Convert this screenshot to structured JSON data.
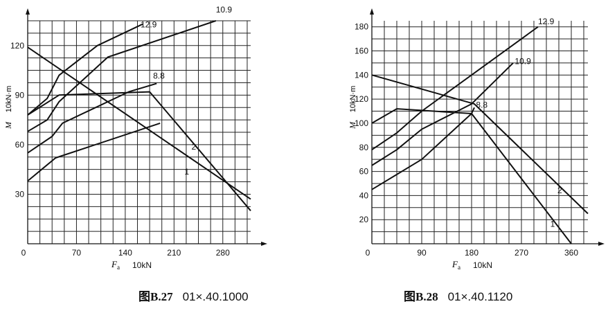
{
  "charts": [
    {
      "caption_label": "图B.27",
      "caption_code": "01×.40.1000",
      "chart_data": {
        "type": "line",
        "ylabel": "M",
        "yunit": "10kN·m",
        "xlabel": "Fa",
        "xunit": "10kN",
        "xlim": [
          0,
          320
        ],
        "ylim": [
          0,
          135
        ],
        "x_grid_step": 17.5,
        "y_grid_step": 7.5,
        "xticks": [
          0,
          70,
          140,
          210,
          280
        ],
        "yticks": [
          30,
          60,
          90,
          120
        ],
        "series": [
          {
            "name": "12.9",
            "x": [
              0,
              28,
              45,
              100,
              165
            ],
            "y": [
              78,
              88,
              102,
              120,
              133
            ]
          },
          {
            "name": "10.9",
            "x": [
              0,
              28,
              45,
              115,
              270
            ],
            "y": [
              68,
              75,
              86,
              113,
              135
            ]
          },
          {
            "name": "8.8",
            "x": [
              0,
              35,
              50,
              145,
              185
            ],
            "y": [
              55,
              65,
              73,
              92,
              97
            ]
          },
          {
            "name": "",
            "x": [
              0,
              20,
              40,
              190
            ],
            "y": [
              38,
              45,
              52,
              73
            ]
          },
          {
            "name": "1",
            "x": [
              0,
              320
            ],
            "y": [
              119,
              27
            ]
          },
          {
            "name": "2",
            "x": [
              0,
              45,
              175,
              320
            ],
            "y": [
              78,
              90,
              92,
              20
            ]
          }
        ],
        "annotations": [
          {
            "text": "12.9",
            "x": 162,
            "y": 131
          },
          {
            "text": "10.9",
            "x": 270,
            "y": 140
          },
          {
            "text": "8.8",
            "x": 180,
            "y": 100
          },
          {
            "text": "2",
            "x": 235,
            "y": 57
          },
          {
            "text": "1",
            "x": 225,
            "y": 42
          }
        ]
      }
    },
    {
      "caption_label": "图B.28",
      "caption_code": "01×.40.1120",
      "chart_data": {
        "type": "line",
        "ylabel": "M",
        "yunit": "10kN·m",
        "xlabel": "Fa",
        "xunit": "10kN",
        "xlim": [
          0,
          390
        ],
        "ylim": [
          0,
          185
        ],
        "x_grid_step": 22.5,
        "y_grid_step": 10,
        "xticks": [
          0,
          90,
          180,
          270,
          360
        ],
        "yticks": [
          20,
          40,
          60,
          80,
          100,
          120,
          140,
          160,
          180
        ],
        "series": [
          {
            "name": "12.9",
            "x": [
              0,
              45,
              90,
              180,
              300
            ],
            "y": [
              78,
              92,
              110,
              140,
              180
            ]
          },
          {
            "name": "10.9",
            "x": [
              0,
              45,
              90,
              180,
              255
            ],
            "y": [
              65,
              78,
              95,
              116,
              150
            ]
          },
          {
            "name": "8.8",
            "x": [
              0,
              90,
              180,
              185
            ],
            "y": [
              45,
              70,
              108,
              113
            ]
          },
          {
            "name": "1",
            "x": [
              0,
              185,
              390
            ],
            "y": [
              140,
              116,
              25
            ]
          },
          {
            "name": "2",
            "x": [
              0,
              45,
              180,
              360
            ],
            "y": [
              100,
              112,
              108,
              0
            ]
          }
        ],
        "annotations": [
          {
            "text": "12.9",
            "x": 300,
            "y": 182
          },
          {
            "text": "10.9",
            "x": 258,
            "y": 149
          },
          {
            "text": "8.8",
            "x": 188,
            "y": 113
          },
          {
            "text": "2",
            "x": 335,
            "y": 42
          },
          {
            "text": "1",
            "x": 322,
            "y": 14
          }
        ]
      }
    }
  ]
}
